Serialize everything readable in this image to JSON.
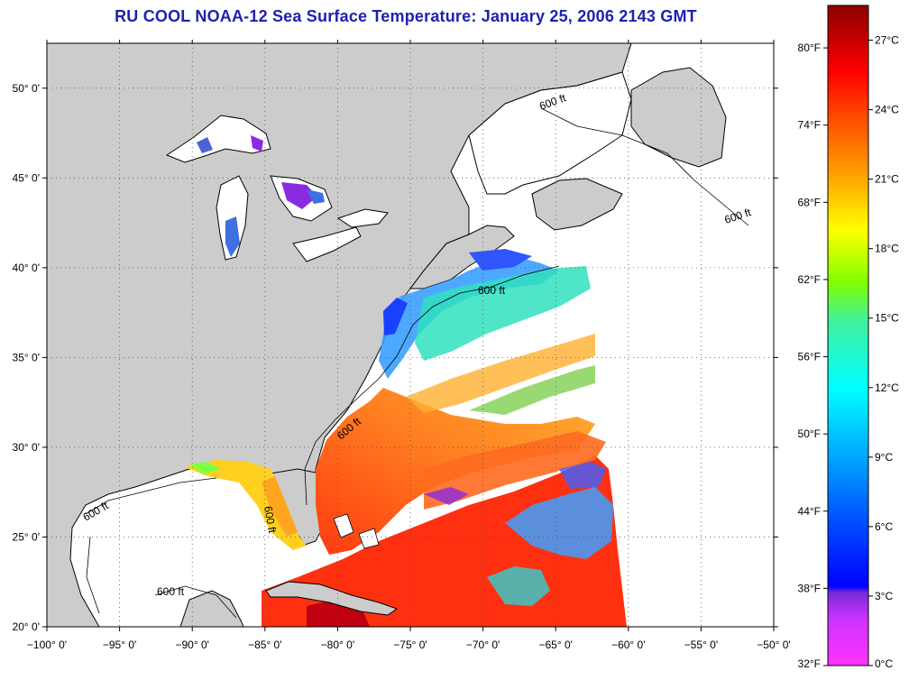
{
  "title": "RU COOL  NOAA-12  Sea Surface Temperature:  January 25, 2006 2143 GMT",
  "contour_label": "600 ft",
  "axes": {
    "lon_labels": [
      "−100° 0'",
      "−95° 0'",
      "−90° 0'",
      "−85° 0'",
      "−80° 0'",
      "−75° 0'",
      "−70° 0'",
      "−65° 0'",
      "−60° 0'",
      "−55° 0'",
      "−50° 0'"
    ],
    "lat_labels": [
      "20° 0'",
      "25° 0'",
      "30° 0'",
      "35° 0'",
      "40° 0'",
      "45° 0'",
      "50° 0'"
    ],
    "lon_range": [
      -100,
      -50
    ],
    "lat_range": [
      20,
      52.5
    ]
  },
  "colorbar": {
    "fahrenheit_labels": [
      "32°F",
      "38°F",
      "44°F",
      "50°F",
      "56°F",
      "62°F",
      "68°F",
      "74°F",
      "80°F"
    ],
    "celsius_labels": [
      "0°C",
      "3°C",
      "6°C",
      "9°C",
      "12°C",
      "15°C",
      "18°C",
      "21°C",
      "24°C",
      "27°C"
    ],
    "range_c": [
      0,
      28.5
    ],
    "colors": [
      "#ff33ff",
      "#8a2be2",
      "#0000ff",
      "#00bfff",
      "#00ffff",
      "#7fff00",
      "#ffff00",
      "#ffa500",
      "#ff0000",
      "#8b0000"
    ]
  },
  "colors": {
    "land": "#cccccc",
    "title": "#1f1fb0",
    "coast": "#000000"
  }
}
